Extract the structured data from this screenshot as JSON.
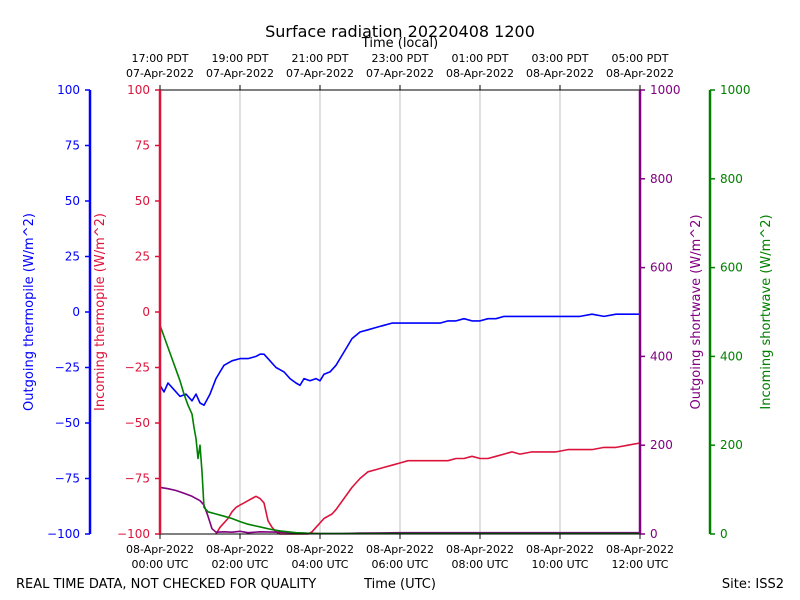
{
  "chart_data": {
    "type": "line",
    "title": "Surface radiation 20220408 1200",
    "top_axis_title": "Time (local)",
    "bottom_axis_title": "Time (UTC)",
    "footer_left": "REAL TIME DATA, NOT CHECKED FOR QUALITY",
    "footer_right": "Site: ISS2",
    "x_range_hours": [
      0,
      12
    ],
    "bottom_ticks": [
      {
        "hours": 0,
        "line1": "08-Apr-2022",
        "line2": "00:00 UTC"
      },
      {
        "hours": 2,
        "line1": "08-Apr-2022",
        "line2": "02:00 UTC"
      },
      {
        "hours": 4,
        "line1": "08-Apr-2022",
        "line2": "04:00 UTC"
      },
      {
        "hours": 6,
        "line1": "08-Apr-2022",
        "line2": "06:00 UTC"
      },
      {
        "hours": 8,
        "line1": "08-Apr-2022",
        "line2": "08:00 UTC"
      },
      {
        "hours": 10,
        "line1": "08-Apr-2022",
        "line2": "10:00 UTC"
      },
      {
        "hours": 12,
        "line1": "08-Apr-2022",
        "line2": "12:00 UTC"
      }
    ],
    "top_ticks": [
      {
        "hours": 0,
        "line1": "17:00 PDT",
        "line2": "07-Apr-2022"
      },
      {
        "hours": 2,
        "line1": "19:00 PDT",
        "line2": "07-Apr-2022"
      },
      {
        "hours": 4,
        "line1": "21:00 PDT",
        "line2": "07-Apr-2022"
      },
      {
        "hours": 6,
        "line1": "23:00 PDT",
        "line2": "07-Apr-2022"
      },
      {
        "hours": 8,
        "line1": "01:00 PDT",
        "line2": "08-Apr-2022"
      },
      {
        "hours": 10,
        "line1": "03:00 PDT",
        "line2": "08-Apr-2022"
      },
      {
        "hours": 12,
        "line1": "05:00 PDT",
        "line2": "08-Apr-2022"
      }
    ],
    "axes": {
      "outgoing_thermopile": {
        "label": "Outgoing thermopile (W/m^2)",
        "color": "#0000ff",
        "ylim": [
          -100,
          100
        ],
        "ticks": [
          -100,
          -75,
          -50,
          -25,
          0,
          25,
          50,
          75,
          100
        ]
      },
      "incoming_thermopile": {
        "label": "Incoming thermopile (W/m^2)",
        "color": "#dc143c",
        "ylim": [
          -100,
          100
        ],
        "ticks": [
          -100,
          -75,
          -50,
          -25,
          0,
          25,
          50,
          75,
          100
        ]
      },
      "outgoing_shortwave": {
        "label": "Outgoing shortwave (W/m^2)",
        "color": "#800080",
        "ylim": [
          0,
          1000
        ],
        "ticks": [
          0,
          200,
          400,
          600,
          800,
          1000
        ]
      },
      "incoming_shortwave": {
        "label": "Incoming shortwave (W/m^2)",
        "color": "#008000",
        "ylim": [
          0,
          1000
        ],
        "ticks": [
          0,
          200,
          400,
          600,
          800,
          1000
        ]
      }
    },
    "series": [
      {
        "name": "Outgoing thermopile",
        "axis": "outgoing_thermopile",
        "color": "#0000ff",
        "x": [
          0,
          0.1,
          0.2,
          0.35,
          0.5,
          0.65,
          0.8,
          0.9,
          1.0,
          1.1,
          1.25,
          1.4,
          1.5,
          1.6,
          1.8,
          2.0,
          2.2,
          2.4,
          2.5,
          2.6,
          2.75,
          2.9,
          3.0,
          3.1,
          3.25,
          3.4,
          3.5,
          3.6,
          3.75,
          3.9,
          4.0,
          4.1,
          4.25,
          4.4,
          4.6,
          4.8,
          5.0,
          5.2,
          5.4,
          5.6,
          5.8,
          6.0,
          6.2,
          6.4,
          6.6,
          6.8,
          7.0,
          7.2,
          7.4,
          7.6,
          7.8,
          8.0,
          8.2,
          8.4,
          8.6,
          8.8,
          9.0,
          9.3,
          9.6,
          9.9,
          10.2,
          10.5,
          10.8,
          11.1,
          11.4,
          11.7,
          12.0
        ],
        "y": [
          -33,
          -36,
          -32,
          -35,
          -38,
          -37,
          -40,
          -37,
          -41,
          -42,
          -37,
          -30,
          -27,
          -24,
          -22,
          -21,
          -21,
          -20,
          -19,
          -19,
          -22,
          -25,
          -26,
          -27,
          -30,
          -32,
          -33,
          -30,
          -31,
          -30,
          -31,
          -28,
          -27,
          -24,
          -18,
          -12,
          -9,
          -8,
          -7,
          -6,
          -5,
          -5,
          -5,
          -5,
          -5,
          -5,
          -5,
          -4,
          -4,
          -3,
          -4,
          -4,
          -3,
          -3,
          -2,
          -2,
          -2,
          -2,
          -2,
          -2,
          -2,
          -2,
          -1,
          -2,
          -1,
          -1,
          -1
        ]
      },
      {
        "name": "Incoming thermopile",
        "axis": "incoming_thermopile",
        "color": "#dc143c",
        "x": [
          1.4,
          1.5,
          1.6,
          1.7,
          1.8,
          1.9,
          2.0,
          2.1,
          2.2,
          2.3,
          2.4,
          2.5,
          2.6,
          2.65,
          2.7,
          2.8,
          2.9,
          3.0,
          3.2,
          3.4,
          3.5,
          3.6,
          3.7,
          3.8,
          3.9,
          4.0,
          4.1,
          4.2,
          4.3,
          4.4,
          4.6,
          4.8,
          5.0,
          5.2,
          5.4,
          5.6,
          5.8,
          6.0,
          6.2,
          6.4,
          6.6,
          6.8,
          7.0,
          7.2,
          7.4,
          7.6,
          7.8,
          8.0,
          8.2,
          8.4,
          8.6,
          8.8,
          9.0,
          9.3,
          9.6,
          9.9,
          10.2,
          10.5,
          10.8,
          11.1,
          11.4,
          11.7,
          12.0
        ],
        "y": [
          -100,
          -97,
          -95,
          -93,
          -90,
          -88,
          -87,
          -86,
          -85,
          -84,
          -83,
          -84,
          -86,
          -90,
          -94,
          -97,
          -99,
          -100,
          -100,
          -100,
          -100,
          -100,
          -100,
          -99,
          -97,
          -95,
          -93,
          -92,
          -91,
          -89,
          -84,
          -79,
          -75,
          -72,
          -71,
          -70,
          -69,
          -68,
          -67,
          -67,
          -67,
          -67,
          -67,
          -67,
          -66,
          -66,
          -65,
          -66,
          -66,
          -65,
          -64,
          -63,
          -64,
          -63,
          -63,
          -63,
          -62,
          -62,
          -62,
          -61,
          -61,
          -60,
          -59
        ]
      },
      {
        "name": "Outgoing shortwave",
        "axis": "outgoing_shortwave",
        "color": "#800080",
        "x": [
          0,
          0.2,
          0.4,
          0.6,
          0.8,
          1.0,
          1.1,
          1.2,
          1.3,
          1.4,
          1.6,
          1.8,
          2.0,
          2.2,
          2.5,
          3.0,
          3.5,
          4.0,
          4.5,
          5.0,
          6.0,
          7.0,
          8.0,
          9.0,
          10.0,
          11.0,
          12.0
        ],
        "y": [
          105,
          102,
          98,
          92,
          85,
          75,
          65,
          40,
          12,
          4,
          5,
          4,
          6,
          3,
          5,
          4,
          2,
          1,
          1,
          2,
          3,
          3,
          3,
          3,
          3,
          3,
          3
        ]
      },
      {
        "name": "Incoming shortwave",
        "axis": "incoming_shortwave",
        "color": "#008000",
        "x": [
          0,
          0.1,
          0.2,
          0.3,
          0.4,
          0.5,
          0.6,
          0.7,
          0.8,
          0.85,
          0.9,
          0.95,
          1.0,
          1.05,
          1.1,
          1.15,
          1.2,
          1.4,
          1.6,
          1.8,
          2.0,
          2.2,
          2.4,
          2.6,
          2.8,
          3.0,
          3.2,
          3.4,
          3.6,
          3.8,
          4.0,
          4.5,
          5.0,
          6.0,
          7.0,
          8.0,
          9.0,
          10.0,
          11.0,
          12.0
        ],
        "y": [
          470,
          445,
          420,
          395,
          370,
          345,
          315,
          290,
          270,
          240,
          215,
          170,
          200,
          140,
          60,
          55,
          50,
          45,
          40,
          35,
          28,
          22,
          18,
          14,
          10,
          7,
          5,
          3,
          2,
          1,
          1,
          1,
          1,
          1,
          1,
          1,
          1,
          1,
          1,
          1
        ]
      }
    ]
  }
}
